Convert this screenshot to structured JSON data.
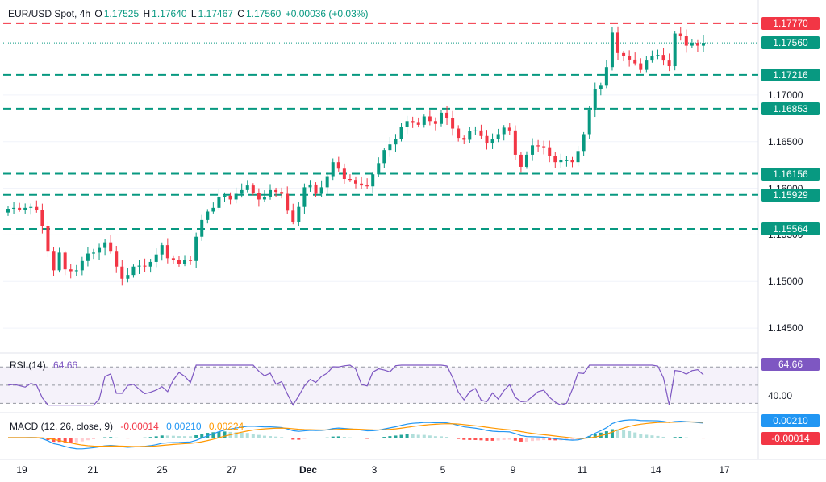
{
  "header": {
    "symbol": "EUR/USD Spot, 4h",
    "open_label": "O",
    "open_value": "1.17525",
    "high_label": "H",
    "high_value": "1.17640",
    "low_label": "L",
    "low_value": "1.17467",
    "close_label": "C",
    "close_value": "1.17560",
    "change": "+0.00036 (+0.03%)"
  },
  "price_axis": {
    "ticks": [
      "1.17000",
      "1.16500",
      "1.16000",
      "1.15500",
      "1.15000",
      "1.14500"
    ],
    "current_price_tag": "1.17560",
    "level_tags": [
      "1.17770",
      "1.17216",
      "1.16853",
      "1.16156",
      "1.15929",
      "1.15564"
    ]
  },
  "time_axis": {
    "labels": [
      "19",
      "21",
      "25",
      "27",
      "Dec",
      "3",
      "5",
      "9",
      "11",
      "14",
      "17"
    ]
  },
  "rsi": {
    "label": "RSI (14)",
    "value": "64.66",
    "tick": "40.00"
  },
  "macd": {
    "label": "MACD (12, 26, close, 9)",
    "hist_value": "-0.00014",
    "macd_value": "0.00210",
    "signal_value": "0.00224",
    "macd_tag": "0.00210",
    "hist_tag": "-0.00014"
  },
  "colors": {
    "up": "#089981",
    "down": "#f23645",
    "resistance": "#f23645",
    "support": "#089981",
    "rsi_line": "#7e57c2",
    "macd_line": "#2196f3",
    "signal_line": "#ff9800"
  },
  "chart_data": {
    "type": "candlestick",
    "ylim": [
      1.1425,
      1.1795
    ],
    "current_price": 1.1756,
    "resistance_levels": [
      1.1777
    ],
    "support_levels": [
      1.17216,
      1.16853,
      1.16156,
      1.15929,
      1.15564
    ],
    "closes": [
      1.1578,
      1.1579,
      1.1577,
      1.1579,
      1.158,
      1.1577,
      1.1559,
      1.1532,
      1.1512,
      1.1531,
      1.1513,
      1.1511,
      1.1512,
      1.1522,
      1.153,
      1.1531,
      1.1536,
      1.1542,
      1.1532,
      1.1516,
      1.1503,
      1.1507,
      1.1516,
      1.1517,
      1.1516,
      1.1521,
      1.1529,
      1.1539,
      1.1525,
      1.1523,
      1.1519,
      1.1523,
      1.1522,
      1.1548,
      1.1566,
      1.1575,
      1.1579,
      1.1591,
      1.1592,
      1.1588,
      1.1594,
      1.1598,
      1.1603,
      1.1595,
      1.1588,
      1.1591,
      1.1598,
      1.1596,
      1.1594,
      1.1576,
      1.1564,
      1.158,
      1.1601,
      1.1604,
      1.1594,
      1.1601,
      1.1613,
      1.1628,
      1.1621,
      1.161,
      1.1609,
      1.1605,
      1.1603,
      1.1602,
      1.1615,
      1.1627,
      1.1641,
      1.1647,
      1.1653,
      1.1666,
      1.1672,
      1.1671,
      1.1668,
      1.1677,
      1.1672,
      1.1669,
      1.1681,
      1.1675,
      1.1664,
      1.1654,
      1.1652,
      1.1661,
      1.1662,
      1.1656,
      1.1648,
      1.1653,
      1.1658,
      1.1665,
      1.1662,
      1.1636,
      1.1623,
      1.1636,
      1.1646,
      1.1645,
      1.1644,
      1.1635,
      1.1628,
      1.163,
      1.163,
      1.1628,
      1.164,
      1.1658,
      1.1684,
      1.1706,
      1.171,
      1.173,
      1.1767,
      1.1745,
      1.1742,
      1.1738,
      1.1734,
      1.1727,
      1.1737,
      1.1742,
      1.1743,
      1.1737,
      1.1731,
      1.1766,
      1.1763,
      1.1753,
      1.1756,
      1.1753,
      1.1756
    ]
  }
}
